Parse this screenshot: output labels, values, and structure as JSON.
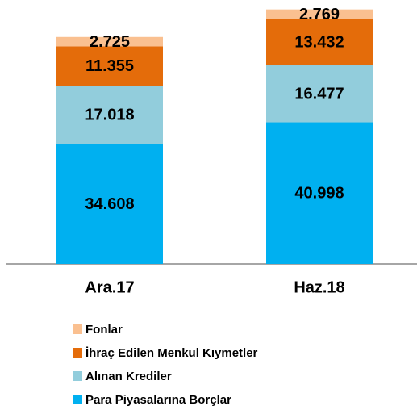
{
  "chart_data": {
    "type": "stacked_bar",
    "categories": [
      "Ara.17",
      "Haz.18"
    ],
    "series": [
      {
        "name": "Para Piyasalarına Borçlar",
        "color": "#00b0f0",
        "values": [
          34608,
          40998
        ],
        "value_labels": [
          "34.608",
          "40.998"
        ]
      },
      {
        "name": "Alınan Krediler",
        "color": "#92cddc",
        "values": [
          17018,
          16477
        ],
        "value_labels": [
          "17.018",
          "16.477"
        ]
      },
      {
        "name": "İhraç Edilen Menkul Kıymetler",
        "color": "#e46c0a",
        "values": [
          11355,
          13432
        ],
        "value_labels": [
          "11.355",
          "13.432"
        ]
      },
      {
        "name": "Fonlar",
        "color": "#fac090",
        "values": [
          2725,
          2769
        ],
        "value_labels": [
          "2.725",
          "2.769"
        ]
      }
    ],
    "ylim": [
      0,
      75000
    ]
  }
}
